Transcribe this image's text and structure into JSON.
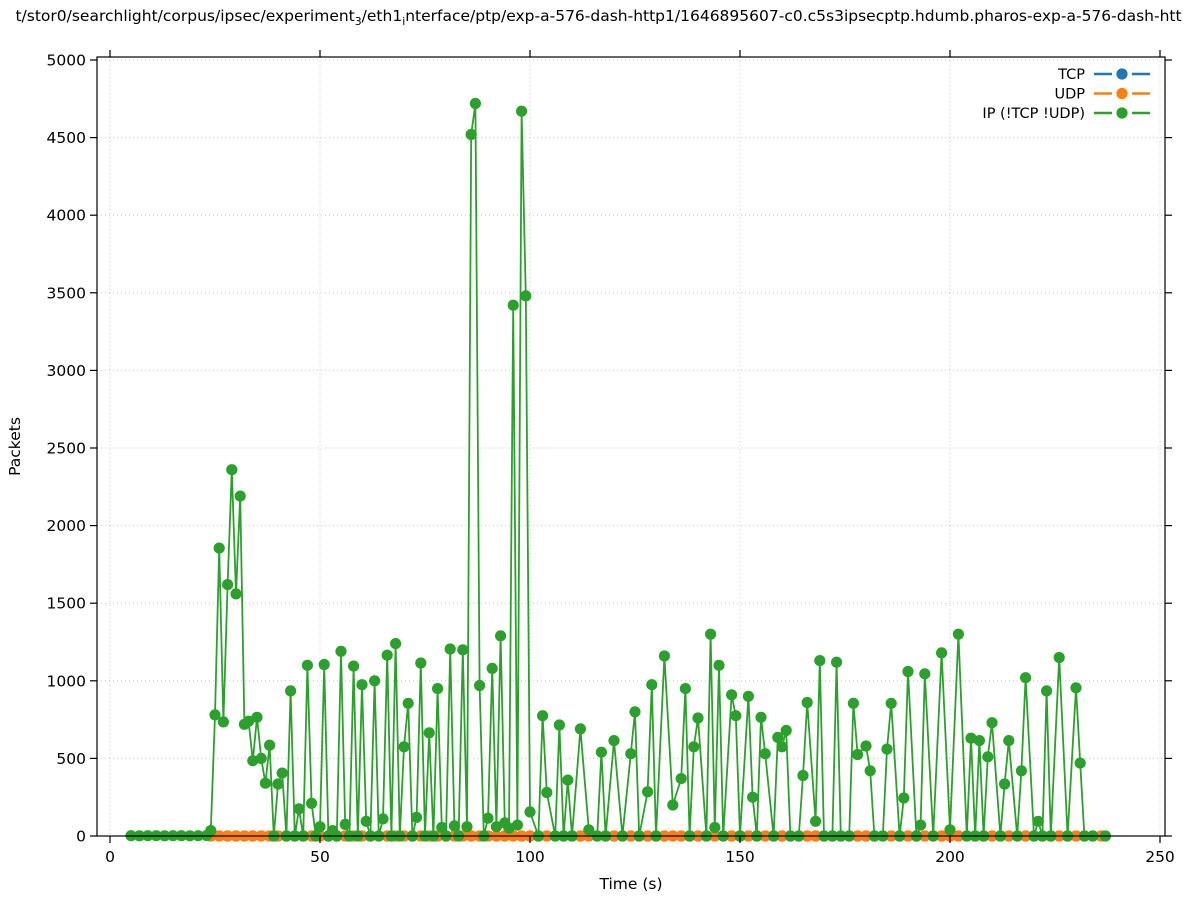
{
  "title": {
    "part1": "t/stor0/searchlight/corpus/ipsec/experiment",
    "sub1": "3",
    "part2": "/eth1",
    "sub2": "i",
    "part3": "nterface/ptp/exp-a-576-dash-http1/1646895607-c0.c5s3ipsecptp.hdumb.pharos-exp-a-576-dash-htt"
  },
  "axes": {
    "xlabel": "Time (s)",
    "ylabel": "Packets",
    "x_ticks": [
      0,
      50,
      100,
      150,
      200,
      250
    ],
    "y_ticks": [
      0,
      500,
      1000,
      1500,
      2000,
      2500,
      3000,
      3500,
      4000,
      4500,
      5000
    ],
    "grid_color": "#c9c9c9",
    "spine_color": "#000000"
  },
  "legend": {
    "position": "upper right",
    "entries": [
      {
        "label": "TCP",
        "color": "#1f77b4"
      },
      {
        "label": "UDP",
        "color": "#ff7f0e"
      },
      {
        "label": "IP (!TCP  !UDP)",
        "color": "#2ca02c"
      }
    ]
  },
  "chart_data": {
    "type": "line",
    "title": "t/stor0/searchlight/corpus/ipsec/experiment₃/eth1ᵢnterface/ptp/exp-a-576-dash-http1/1646895607-c0.c5s3ipsecptp.hdumb.pharos-exp-a-576-dash-htt",
    "xlabel": "Time (s)",
    "ylabel": "Packets",
    "xlim": [
      -3,
      251
    ],
    "ylim": [
      0,
      5020
    ],
    "grid": "dotted major",
    "legend_position": "upper right",
    "marker": "circle",
    "series": [
      {
        "name": "TCP",
        "color": "#1f77b4",
        "points_spec": {
          "t_start": 24,
          "t_end": 236,
          "t_step": 2,
          "value": 0
        },
        "note": "constant 0, hidden behind other series"
      },
      {
        "name": "UDP",
        "color": "#ff7f0e",
        "points_spec": {
          "t_start": 24,
          "t_end": 236,
          "t_step": 2,
          "value": 0
        },
        "note": "constant 0, mostly hidden behind IP series"
      },
      {
        "name": "IP (!TCP  !UDP)",
        "color": "#2ca02c",
        "points": [
          [
            5,
            2
          ],
          [
            7,
            1
          ],
          [
            9,
            2
          ],
          [
            11,
            2
          ],
          [
            13,
            1
          ],
          [
            15,
            2
          ],
          [
            17,
            2
          ],
          [
            19,
            1
          ],
          [
            21,
            2
          ],
          [
            23,
            3
          ],
          [
            24,
            35
          ],
          [
            25,
            780
          ],
          [
            26,
            1855
          ],
          [
            27,
            735
          ],
          [
            28,
            1620
          ],
          [
            29,
            2360
          ],
          [
            30,
            1560
          ],
          [
            31,
            2190
          ],
          [
            32,
            720
          ],
          [
            33,
            740
          ],
          [
            34,
            485
          ],
          [
            35,
            765
          ],
          [
            36,
            500
          ],
          [
            37,
            340
          ],
          [
            38,
            585
          ],
          [
            39,
            0
          ],
          [
            40,
            335
          ],
          [
            41,
            405
          ],
          [
            42,
            0
          ],
          [
            43,
            935
          ],
          [
            44,
            0
          ],
          [
            45,
            175
          ],
          [
            46,
            0
          ],
          [
            47,
            1100
          ],
          [
            48,
            210
          ],
          [
            49,
            0
          ],
          [
            50,
            60
          ],
          [
            51,
            1105
          ],
          [
            52,
            0
          ],
          [
            53,
            35
          ],
          [
            54,
            0
          ],
          [
            55,
            1190
          ],
          [
            56,
            75
          ],
          [
            57,
            0
          ],
          [
            58,
            1095
          ],
          [
            59,
            0
          ],
          [
            60,
            975
          ],
          [
            61,
            95
          ],
          [
            62,
            0
          ],
          [
            63,
            1000
          ],
          [
            64,
            0
          ],
          [
            65,
            110
          ],
          [
            66,
            1165
          ],
          [
            67,
            0
          ],
          [
            68,
            1240
          ],
          [
            69,
            0
          ],
          [
            70,
            575
          ],
          [
            71,
            855
          ],
          [
            72,
            0
          ],
          [
            73,
            120
          ],
          [
            74,
            1115
          ],
          [
            75,
            0
          ],
          [
            76,
            665
          ],
          [
            77,
            0
          ],
          [
            78,
            950
          ],
          [
            79,
            55
          ],
          [
            80,
            0
          ],
          [
            81,
            1205
          ],
          [
            82,
            65
          ],
          [
            83,
            0
          ],
          [
            84,
            1200
          ],
          [
            85,
            60
          ],
          [
            86,
            4520
          ],
          [
            87,
            4720
          ],
          [
            88,
            970
          ],
          [
            89,
            0
          ],
          [
            90,
            115
          ],
          [
            91,
            1080
          ],
          [
            92,
            60
          ],
          [
            93,
            1290
          ],
          [
            94,
            85
          ],
          [
            95,
            50
          ],
          [
            96,
            3420
          ],
          [
            97,
            70
          ],
          [
            98,
            4670
          ],
          [
            99,
            3480
          ],
          [
            100,
            155
          ],
          [
            102,
            0
          ],
          [
            103,
            775
          ],
          [
            104,
            280
          ],
          [
            106,
            0
          ],
          [
            107,
            715
          ],
          [
            108,
            0
          ],
          [
            109,
            360
          ],
          [
            110,
            0
          ],
          [
            112,
            690
          ],
          [
            114,
            40
          ],
          [
            116,
            0
          ],
          [
            117,
            540
          ],
          [
            118,
            0
          ],
          [
            120,
            615
          ],
          [
            122,
            0
          ],
          [
            124,
            530
          ],
          [
            125,
            800
          ],
          [
            126,
            0
          ],
          [
            128,
            285
          ],
          [
            129,
            975
          ],
          [
            130,
            0
          ],
          [
            132,
            1160
          ],
          [
            134,
            200
          ],
          [
            136,
            370
          ],
          [
            137,
            950
          ],
          [
            138,
            0
          ],
          [
            139,
            575
          ],
          [
            140,
            760
          ],
          [
            142,
            0
          ],
          [
            143,
            1300
          ],
          [
            144,
            55
          ],
          [
            145,
            1100
          ],
          [
            146,
            0
          ],
          [
            148,
            910
          ],
          [
            149,
            775
          ],
          [
            150,
            0
          ],
          [
            152,
            900
          ],
          [
            153,
            250
          ],
          [
            154,
            0
          ],
          [
            155,
            765
          ],
          [
            156,
            530
          ],
          [
            158,
            0
          ],
          [
            159,
            635
          ],
          [
            160,
            575
          ],
          [
            161,
            680
          ],
          [
            162,
            0
          ],
          [
            164,
            0
          ],
          [
            165,
            390
          ],
          [
            166,
            860
          ],
          [
            168,
            95
          ],
          [
            169,
            1130
          ],
          [
            170,
            0
          ],
          [
            172,
            0
          ],
          [
            173,
            1120
          ],
          [
            174,
            0
          ],
          [
            176,
            0
          ],
          [
            177,
            855
          ],
          [
            178,
            525
          ],
          [
            180,
            580
          ],
          [
            181,
            420
          ],
          [
            182,
            0
          ],
          [
            184,
            0
          ],
          [
            185,
            560
          ],
          [
            186,
            855
          ],
          [
            188,
            0
          ],
          [
            189,
            245
          ],
          [
            190,
            1060
          ],
          [
            192,
            0
          ],
          [
            193,
            70
          ],
          [
            194,
            1045
          ],
          [
            196,
            0
          ],
          [
            198,
            1180
          ],
          [
            200,
            40
          ],
          [
            202,
            1300
          ],
          [
            204,
            0
          ],
          [
            205,
            630
          ],
          [
            206,
            0
          ],
          [
            207,
            615
          ],
          [
            208,
            0
          ],
          [
            209,
            510
          ],
          [
            210,
            730
          ],
          [
            212,
            0
          ],
          [
            213,
            335
          ],
          [
            214,
            615
          ],
          [
            216,
            0
          ],
          [
            217,
            420
          ],
          [
            218,
            1020
          ],
          [
            220,
            0
          ],
          [
            221,
            95
          ],
          [
            222,
            0
          ],
          [
            223,
            935
          ],
          [
            224,
            0
          ],
          [
            226,
            1150
          ],
          [
            228,
            0
          ],
          [
            230,
            955
          ],
          [
            231,
            470
          ],
          [
            232,
            0
          ],
          [
            234,
            0
          ],
          [
            237,
            0
          ]
        ]
      }
    ]
  }
}
